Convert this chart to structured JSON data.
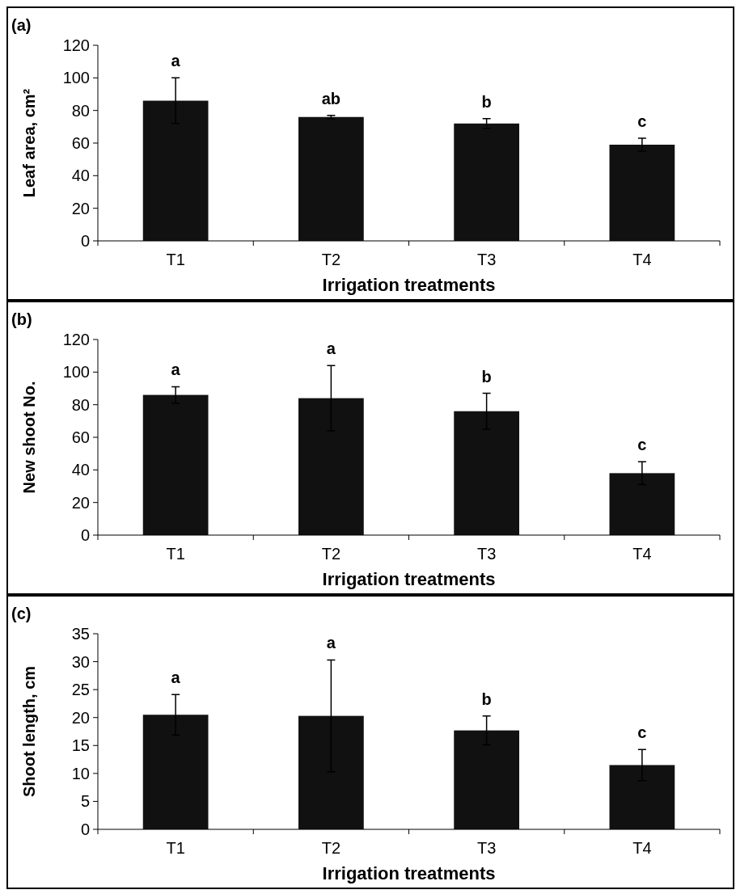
{
  "chart_data": [
    {
      "type": "bar",
      "title": "(a)",
      "xlabel": "Irrigation treatments",
      "ylabel": "Leaf area, cm²",
      "categories": [
        "T1",
        "T2",
        "T3",
        "T4"
      ],
      "values": [
        86,
        76,
        72,
        59
      ],
      "errors": [
        14,
        1,
        3,
        4
      ],
      "color": "#111111",
      "ylim": [
        0,
        120
      ],
      "yticks": [
        0,
        20,
        40,
        60,
        80,
        100,
        120
      ],
      "grid": false,
      "annotations": [
        "a",
        "ab",
        "b",
        "c"
      ]
    },
    {
      "type": "bar",
      "title": "(b)",
      "xlabel": "Irrigation treatments",
      "ylabel": "New shoot No.",
      "categories": [
        "T1",
        "T2",
        "T3",
        "T4"
      ],
      "values": [
        86,
        84,
        76,
        38
      ],
      "errors": [
        5,
        20,
        11,
        7
      ],
      "color": "#111111",
      "ylim": [
        0,
        120
      ],
      "yticks": [
        0,
        20,
        40,
        60,
        80,
        100,
        120
      ],
      "grid": false,
      "annotations": [
        "a",
        "a",
        "b",
        "c"
      ]
    },
    {
      "type": "bar",
      "title": "(c)",
      "xlabel": "Irrigation treatments",
      "ylabel": "Shoot length, cm",
      "categories": [
        "T1",
        "T2",
        "T3",
        "T4"
      ],
      "values": [
        20.5,
        20.3,
        17.7,
        11.5
      ],
      "errors": [
        3.6,
        10,
        2.6,
        2.8
      ],
      "color": "#111111",
      "ylim": [
        0,
        35
      ],
      "yticks": [
        0,
        5,
        10,
        15,
        20,
        25,
        30,
        35
      ],
      "grid": false,
      "annotations": [
        "a",
        "a",
        "b",
        "c"
      ]
    }
  ]
}
